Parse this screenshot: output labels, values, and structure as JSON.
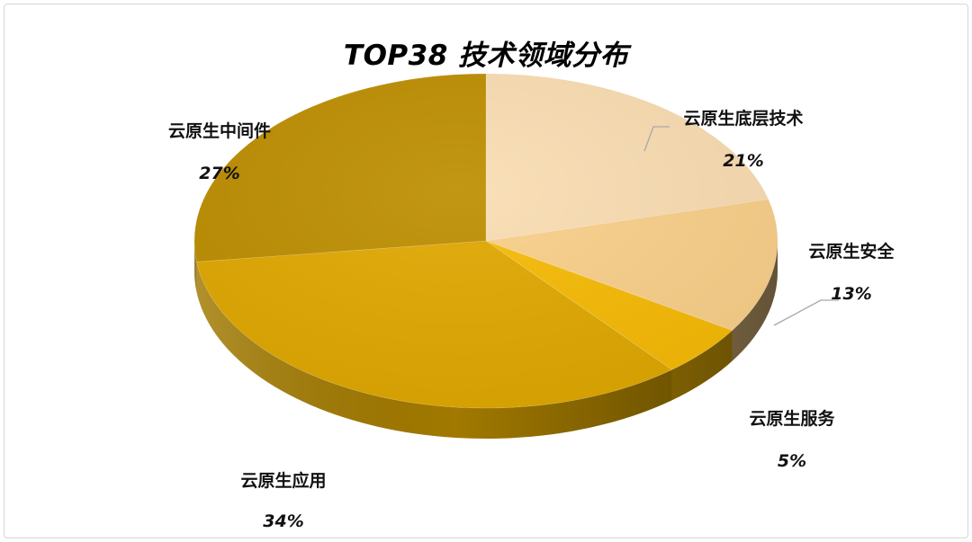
{
  "chart_data": {
    "type": "pie",
    "title": "TOP38 技术领域分布",
    "style": "3d",
    "legend": "none",
    "slices": [
      {
        "name": "云原生底层技术",
        "value": 21,
        "label": "21%",
        "color": "#FADDB2"
      },
      {
        "name": "云原生安全",
        "value": 13,
        "label": "13%",
        "color": "#FAD08A"
      },
      {
        "name": "云原生服务",
        "value": 5,
        "label": "5%",
        "color": "#F7BB05"
      },
      {
        "name": "云原生应用",
        "value": 34,
        "label": "34%",
        "color": "#E0A800"
      },
      {
        "name": "云原生中间件",
        "value": 27,
        "label": "27%",
        "color": "#BD8E00"
      }
    ]
  }
}
